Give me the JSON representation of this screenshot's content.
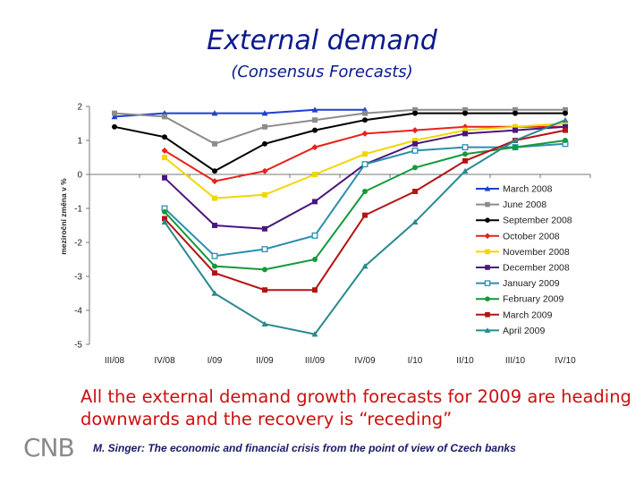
{
  "slide": {
    "title": "External demand",
    "subtitle": "(Consensus Forecasts)",
    "caption": "All the external demand growth forecasts for 2009 are heading downwards and the recovery is “receding”",
    "logo_text": "CNB",
    "footer": "M. Singer: The economic and financial crisis from the point of view of Czech banks"
  },
  "chart_data": {
    "type": "line",
    "ylabel": "meziroční změna v %",
    "categories": [
      "III/08",
      "IV/08",
      "I/09",
      "II/09",
      "III/09",
      "IV/09",
      "I/10",
      "II/10",
      "III/10",
      "IV/10"
    ],
    "ylim": [
      -5,
      2
    ],
    "yticks": [
      2,
      1,
      0,
      -1,
      -2,
      -3,
      -4,
      -5
    ],
    "grid": false,
    "legend_position": "right",
    "series": [
      {
        "name": "March 2008",
        "color": "#1f3fd1",
        "marker": "triangle",
        "values": [
          1.7,
          1.8,
          1.8,
          1.8,
          1.9,
          1.9,
          null,
          null,
          null,
          null
        ]
      },
      {
        "name": "June 2008",
        "color": "#8c8c8c",
        "marker": "square",
        "values": [
          1.8,
          1.7,
          0.9,
          1.4,
          1.6,
          1.8,
          1.9,
          1.9,
          1.9,
          1.9
        ]
      },
      {
        "name": "September 2008",
        "color": "#000000",
        "marker": "circle",
        "values": [
          1.4,
          1.1,
          0.1,
          0.9,
          1.3,
          1.6,
          1.8,
          1.8,
          1.8,
          1.8
        ]
      },
      {
        "name": "October 2008",
        "color": "#e8221b",
        "marker": "diamond",
        "values": [
          null,
          0.7,
          -0.2,
          0.1,
          0.8,
          1.2,
          1.3,
          1.4,
          1.4,
          1.4
        ]
      },
      {
        "name": "November 2008",
        "color": "#f2d600",
        "marker": "square",
        "values": [
          null,
          0.5,
          -0.7,
          -0.6,
          0.0,
          0.6,
          1.0,
          1.3,
          1.4,
          1.5
        ]
      },
      {
        "name": "December 2008",
        "color": "#4a1680",
        "marker": "square",
        "values": [
          null,
          -0.1,
          -1.5,
          -1.6,
          -0.8,
          0.3,
          0.9,
          1.2,
          1.3,
          1.4
        ]
      },
      {
        "name": "January 2009",
        "color": "#2b8fae",
        "marker": "square-open",
        "values": [
          null,
          -1.0,
          -2.4,
          -2.2,
          -1.8,
          0.3,
          0.7,
          0.8,
          0.8,
          0.9
        ]
      },
      {
        "name": "February 2009",
        "color": "#139a3a",
        "marker": "circle",
        "values": [
          null,
          -1.1,
          -2.7,
          -2.8,
          -2.5,
          -0.5,
          0.2,
          0.6,
          0.8,
          1.0
        ]
      },
      {
        "name": "March 2009",
        "color": "#b31414",
        "marker": "square",
        "values": [
          null,
          -1.3,
          -2.9,
          -3.4,
          -3.4,
          -1.2,
          -0.5,
          0.4,
          1.0,
          1.3
        ]
      },
      {
        "name": "April 2009",
        "color": "#2a8a8e",
        "marker": "triangle",
        "values": [
          null,
          -1.4,
          -3.5,
          -4.4,
          -4.7,
          -2.7,
          -1.4,
          0.1,
          1.0,
          1.6
        ]
      }
    ]
  }
}
